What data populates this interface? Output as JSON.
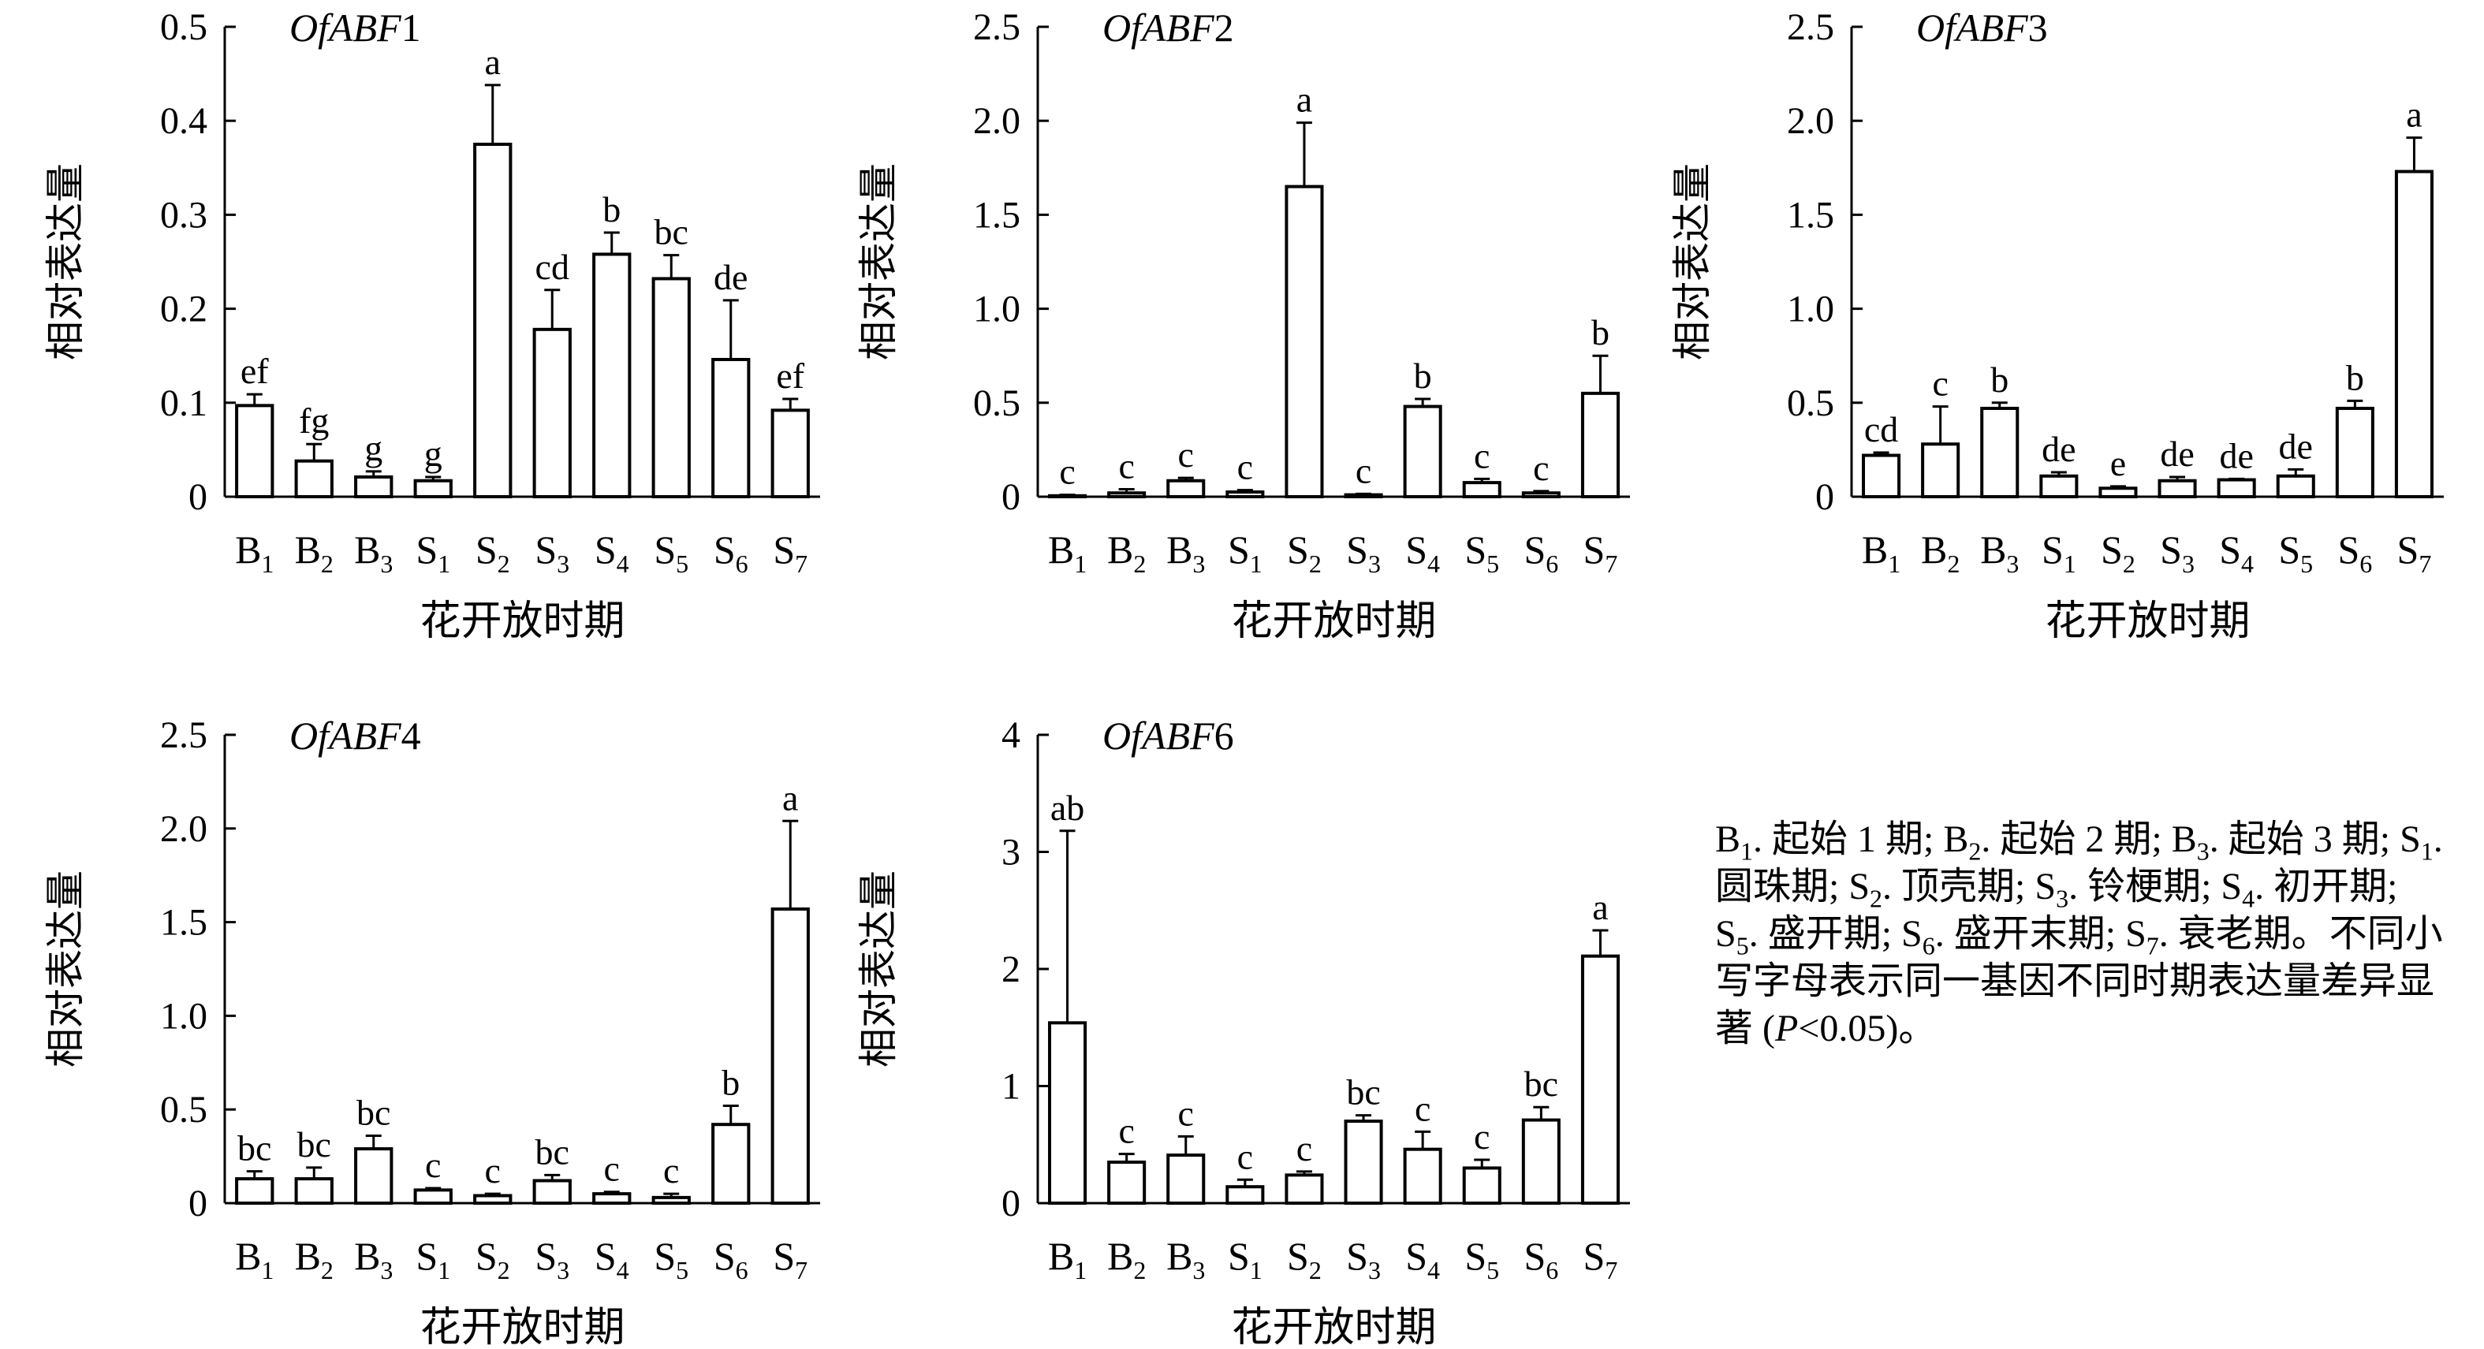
{
  "figure": {
    "x_axis_title": "花开放时期",
    "y_axis_title": "相对表达量",
    "categories": [
      {
        "base": "B",
        "sub": "1"
      },
      {
        "base": "B",
        "sub": "2"
      },
      {
        "base": "B",
        "sub": "3"
      },
      {
        "base": "S",
        "sub": "1"
      },
      {
        "base": "S",
        "sub": "2"
      },
      {
        "base": "S",
        "sub": "3"
      },
      {
        "base": "S",
        "sub": "4"
      },
      {
        "base": "S",
        "sub": "5"
      },
      {
        "base": "S",
        "sub": "6"
      },
      {
        "base": "S",
        "sub": "7"
      }
    ],
    "note_segments": [
      {
        "t": "B"
      },
      {
        "sub": "1"
      },
      {
        "t": ". 起始 1 期; B"
      },
      {
        "sub": "2"
      },
      {
        "t": ". 起始 2 期; B"
      },
      {
        "sub": "3"
      },
      {
        "t": ". 起始 3 期; S"
      },
      {
        "sub": "1"
      },
      {
        "t": ". 圆珠期; S"
      },
      {
        "sub": "2"
      },
      {
        "t": ". 顶壳期; S"
      },
      {
        "sub": "3"
      },
      {
        "t": ". 铃梗期; S"
      },
      {
        "sub": "4"
      },
      {
        "t": ". 初开期; S"
      },
      {
        "sub": "5"
      },
      {
        "t": ". 盛开期; S"
      },
      {
        "sub": "6"
      },
      {
        "t": ". 盛开末期; S"
      },
      {
        "sub": "7"
      },
      {
        "t": ". 衰老期。不同小写字母表示同一基因不同时期表达量差异显著 ("
      },
      {
        "i": "P"
      },
      {
        "t": "<0.05)。"
      }
    ]
  },
  "chart_data": [
    {
      "type": "bar",
      "title_italic": "OfABF",
      "title_suffix": "1",
      "categories": [
        "B1",
        "B2",
        "B3",
        "S1",
        "S2",
        "S3",
        "S4",
        "S5",
        "S6",
        "S7"
      ],
      "values": [
        0.097,
        0.038,
        0.021,
        0.017,
        0.375,
        0.178,
        0.258,
        0.232,
        0.146,
        0.092
      ],
      "errors": [
        0.012,
        0.018,
        0.006,
        0.004,
        0.063,
        0.042,
        0.023,
        0.025,
        0.063,
        0.012
      ],
      "labels": [
        "ef",
        "fg",
        "g",
        "g",
        "a",
        "cd",
        "b",
        "bc",
        "de",
        "ef"
      ],
      "ylim": [
        0,
        0.5
      ],
      "yticks": [
        "0",
        "0.1",
        "0.2",
        "0.3",
        "0.4",
        "0.5"
      ],
      "xlabel": "花开放时期",
      "ylabel": "相对表达量"
    },
    {
      "type": "bar",
      "title_italic": "OfABF",
      "title_suffix": "2",
      "categories": [
        "B1",
        "B2",
        "B3",
        "S1",
        "S2",
        "S3",
        "S4",
        "S5",
        "S6",
        "S7"
      ],
      "values": [
        0.005,
        0.02,
        0.085,
        0.025,
        1.65,
        0.01,
        0.48,
        0.075,
        0.02,
        0.55
      ],
      "errors": [
        0.005,
        0.02,
        0.015,
        0.01,
        0.34,
        0.005,
        0.04,
        0.02,
        0.01,
        0.2
      ],
      "labels": [
        "c",
        "c",
        "c",
        "c",
        "a",
        "c",
        "b",
        "c",
        "c",
        "b"
      ],
      "ylim": [
        0,
        2.5
      ],
      "yticks": [
        "0",
        "0.5",
        "1.0",
        "1.5",
        "2.0",
        "2.5"
      ],
      "xlabel": "花开放时期",
      "ylabel": "相对表达量"
    },
    {
      "type": "bar",
      "title_italic": "OfABF",
      "title_suffix": "3",
      "categories": [
        "B1",
        "B2",
        "B3",
        "S1",
        "S2",
        "S3",
        "S4",
        "S5",
        "S6",
        "S7"
      ],
      "values": [
        0.22,
        0.28,
        0.47,
        0.11,
        0.045,
        0.085,
        0.09,
        0.11,
        0.47,
        1.73
      ],
      "errors": [
        0.015,
        0.2,
        0.03,
        0.02,
        0.01,
        0.02,
        0.005,
        0.035,
        0.04,
        0.18
      ],
      "labels": [
        "cd",
        "c",
        "b",
        "de",
        "e",
        "de",
        "de",
        "de",
        "b",
        "a"
      ],
      "ylim": [
        0,
        2.5
      ],
      "yticks": [
        "0",
        "0.5",
        "1.0",
        "1.5",
        "2.0",
        "2.5"
      ],
      "xlabel": "花开放时期",
      "ylabel": "相对表达量"
    },
    {
      "type": "bar",
      "title_italic": "OfABF",
      "title_suffix": "4",
      "categories": [
        "B1",
        "B2",
        "B3",
        "S1",
        "S2",
        "S3",
        "S4",
        "S5",
        "S6",
        "S7"
      ],
      "values": [
        0.13,
        0.13,
        0.29,
        0.07,
        0.04,
        0.12,
        0.05,
        0.03,
        0.42,
        1.57
      ],
      "errors": [
        0.04,
        0.06,
        0.07,
        0.01,
        0.01,
        0.03,
        0.01,
        0.02,
        0.1,
        0.47
      ],
      "labels": [
        "bc",
        "bc",
        "bc",
        "c",
        "c",
        "bc",
        "c",
        "c",
        "b",
        "a"
      ],
      "ylim": [
        0,
        2.5
      ],
      "yticks": [
        "0",
        "0.5",
        "1.0",
        "1.5",
        "2.0",
        "2.5"
      ],
      "xlabel": "花开放时期",
      "ylabel": "相对表达量"
    },
    {
      "type": "bar",
      "title_italic": "OfABF",
      "title_suffix": "6",
      "categories": [
        "B1",
        "B2",
        "B3",
        "S1",
        "S2",
        "S3",
        "S4",
        "S5",
        "S6",
        "S7"
      ],
      "values": [
        1.54,
        0.35,
        0.41,
        0.14,
        0.24,
        0.7,
        0.46,
        0.3,
        0.71,
        2.11
      ],
      "errors": [
        1.64,
        0.07,
        0.16,
        0.06,
        0.03,
        0.05,
        0.15,
        0.07,
        0.11,
        0.22
      ],
      "labels": [
        "ab",
        "c",
        "c",
        "c",
        "c",
        "bc",
        "c",
        "c",
        "bc",
        "a"
      ],
      "ylim": [
        0,
        4
      ],
      "yticks": [
        "0",
        "1",
        "2",
        "3",
        "4"
      ],
      "xlabel": "花开放时期",
      "ylabel": "相对表达量"
    }
  ]
}
